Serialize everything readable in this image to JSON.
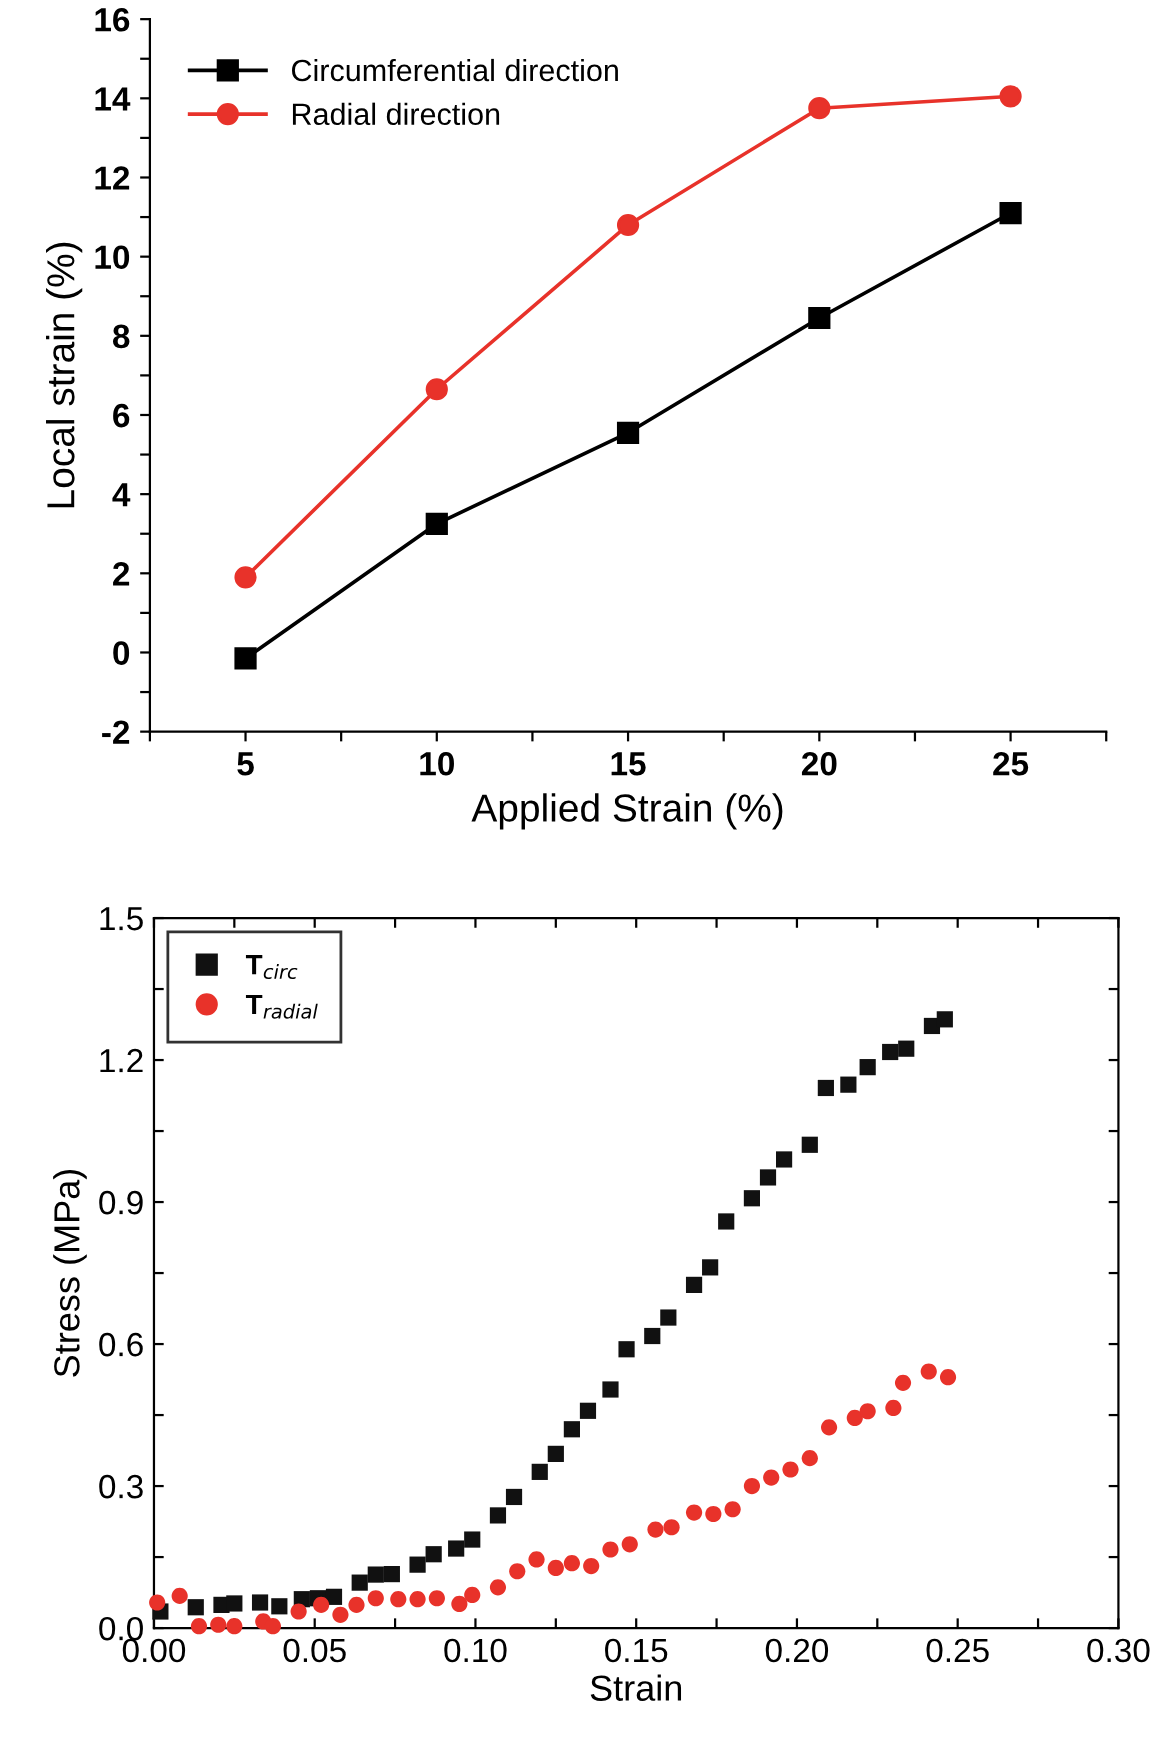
{
  "chart_data": [
    {
      "type": "line",
      "xlabel": "Applied Strain (%)",
      "ylabel": "Local strain (%)",
      "x": [
        5,
        10,
        15,
        20,
        25
      ],
      "xlim": [
        2.5,
        27.5
      ],
      "xticks": [
        {
          "value": 2.5,
          "label": null
        },
        5,
        {
          "value": 7.5,
          "label": null
        },
        10,
        {
          "value": 12.5,
          "label": null
        },
        15,
        {
          "value": 17.5,
          "label": null
        },
        20,
        {
          "value": 22.5,
          "label": null
        },
        25,
        {
          "value": 27.5,
          "label": null
        }
      ],
      "ylim": [
        -2,
        16
      ],
      "yticks": [
        -2,
        {
          "value": -1,
          "label": null
        },
        0,
        {
          "value": 1,
          "label": null
        },
        2,
        {
          "value": 3,
          "label": null
        },
        4,
        {
          "value": 5,
          "label": null
        },
        6,
        {
          "value": 7,
          "label": null
        },
        8,
        {
          "value": 9,
          "label": null
        },
        10,
        {
          "value": 11,
          "label": null
        },
        12,
        {
          "value": 13,
          "label": null
        },
        14,
        {
          "value": 15,
          "label": null
        },
        16
      ],
      "legend": "top left",
      "grid": false,
      "line_style": "solid",
      "series": [
        {
          "name": "Circumferential direction",
          "color": "#000000",
          "marker": "square",
          "values": [
            -0.15,
            3.25,
            5.55,
            8.45,
            11.1
          ]
        },
        {
          "name": "Radial direction",
          "color": "#e8322a",
          "marker": "circle",
          "values": [
            1.9,
            6.65,
            10.8,
            13.75,
            14.05
          ]
        }
      ]
    },
    {
      "type": "scatter",
      "xlabel": "Strain",
      "ylabel": "Stress (MPa)",
      "xlim": [
        0,
        0.3
      ],
      "xticks": [
        {
          "value": 0,
          "label": "0.00"
        },
        {
          "value": 0.025,
          "label": null
        },
        {
          "value": 0.05,
          "label": "0.05"
        },
        {
          "value": 0.075,
          "label": null
        },
        {
          "value": 0.1,
          "label": "0.10"
        },
        {
          "value": 0.125,
          "label": null
        },
        {
          "value": 0.15,
          "label": "0.15"
        },
        {
          "value": 0.175,
          "label": null
        },
        {
          "value": 0.2,
          "label": "0.20"
        },
        {
          "value": 0.225,
          "label": null
        },
        {
          "value": 0.25,
          "label": "0.25"
        },
        {
          "value": 0.275,
          "label": null
        },
        {
          "value": 0.3,
          "label": "0.30"
        }
      ],
      "ylim": [
        0,
        1.5
      ],
      "yticks": [
        {
          "value": 0,
          "label": "0.0"
        },
        {
          "value": 0.15,
          "label": null
        },
        0.3,
        {
          "value": 0.45,
          "label": null
        },
        0.6,
        {
          "value": 0.75,
          "label": null
        },
        0.9,
        {
          "value": 1.05,
          "label": null
        },
        1.2,
        {
          "value": 1.35,
          "label": null
        },
        1.5
      ],
      "legend": "top left",
      "grid": false,
      "series": [
        {
          "name": "T$_{circ}$",
          "color": "#111111",
          "marker": "square",
          "x": [
            0.002,
            0.013,
            0.021,
            0.025,
            0.033,
            0.039,
            0.046,
            0.051,
            0.056,
            0.064,
            0.069,
            0.074,
            0.082,
            0.087,
            0.094,
            0.099,
            0.107,
            0.112,
            0.12,
            0.125,
            0.13,
            0.135,
            0.142,
            0.147,
            0.155,
            0.16,
            0.168,
            0.173,
            0.178,
            0.186,
            0.191,
            0.196,
            0.204,
            0.209,
            0.216,
            0.222,
            0.229,
            0.234,
            0.242,
            0.246
          ],
          "values": [
            0.035,
            0.044,
            0.049,
            0.052,
            0.054,
            0.046,
            0.061,
            0.063,
            0.066,
            0.096,
            0.113,
            0.114,
            0.134,
            0.156,
            0.168,
            0.187,
            0.238,
            0.277,
            0.33,
            0.368,
            0.42,
            0.459,
            0.504,
            0.589,
            0.617,
            0.656,
            0.725,
            0.762,
            0.859,
            0.908,
            0.952,
            0.99,
            1.021,
            1.141,
            1.148,
            1.185,
            1.217,
            1.224,
            1.272,
            1.286
          ]
        },
        {
          "name": "T$_{radial}$",
          "color": "#e8322a",
          "marker": "circle",
          "x": [
            0.001,
            0.008,
            0.014,
            0.02,
            0.025,
            0.034,
            0.037,
            0.045,
            0.052,
            0.058,
            0.063,
            0.069,
            0.076,
            0.082,
            0.088,
            0.095,
            0.099,
            0.107,
            0.113,
            0.119,
            0.125,
            0.13,
            0.136,
            0.142,
            0.148,
            0.156,
            0.161,
            0.168,
            0.174,
            0.18,
            0.186,
            0.192,
            0.198,
            0.204,
            0.21,
            0.218,
            0.222,
            0.23,
            0.233,
            0.241,
            0.247
          ],
          "values": [
            0.054,
            0.068,
            0.004,
            0.007,
            0.004,
            0.014,
            0.004,
            0.035,
            0.049,
            0.028,
            0.049,
            0.063,
            0.061,
            0.061,
            0.063,
            0.051,
            0.07,
            0.086,
            0.12,
            0.145,
            0.127,
            0.137,
            0.131,
            0.166,
            0.177,
            0.208,
            0.213,
            0.244,
            0.241,
            0.251,
            0.3,
            0.318,
            0.335,
            0.359,
            0.424,
            0.444,
            0.458,
            0.465,
            0.518,
            0.542,
            0.53
          ]
        }
      ]
    }
  ]
}
